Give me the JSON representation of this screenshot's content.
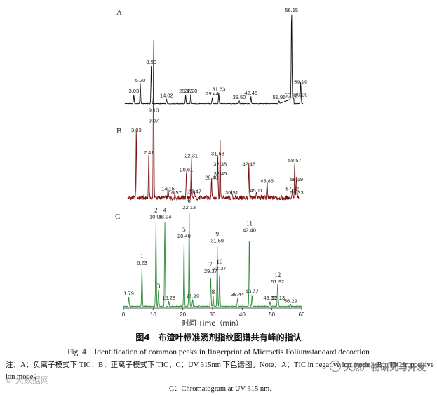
{
  "caption": {
    "cn": "图4　布渣叶标准汤剂指纹图谱共有峰的指认",
    "en": "Fig. 4　Identification of common peaks in fingerprint of Microctis Foliumstandard decoction",
    "note_line1": "注：A：负离子模式下 TIC；B：正离子模式下 TIC；C：UV 315nm 下色谱图。Note：A：TIC in negative ion mode；B：TIC in positive ion mode；",
    "note_line2": "C：Chromatogram at UV 315 nm."
  },
  "watermarks": {
    "left": "© 大数据网",
    "right": "天然产物研究与开发"
  },
  "chart_data": [
    {
      "panel_label": "A",
      "type": "line",
      "color": "#111111",
      "xlim": [
        0,
        60
      ],
      "peaks": [
        {
          "x": 3.03,
          "label": "3.03",
          "rel": 0.1
        },
        {
          "x": 5.2,
          "label": "5.20",
          "rel": 0.22
        },
        {
          "x": 8.9,
          "label": "8.90",
          "rel": 0.42
        },
        {
          "x": 14.02,
          "label": "14.02",
          "rel": 0.05
        },
        {
          "x": 20.47,
          "label": "20.47",
          "rel": 0.1
        },
        {
          "x": 22.2,
          "label": "22.20",
          "rel": 0.1
        },
        {
          "x": 29.44,
          "label": "29.44",
          "rel": 0.07
        },
        {
          "x": 31.63,
          "label": "31.63",
          "rel": 0.12
        },
        {
          "x": 38.5,
          "label": "38.50",
          "rel": 0.03
        },
        {
          "x": 42.45,
          "label": "42.45",
          "rel": 0.08
        },
        {
          "x": 51.96,
          "label": "51.96",
          "rel": 0.03
        },
        {
          "x": 55.98,
          "label": "55.98",
          "rel": 0.05
        },
        {
          "x": 56.15,
          "label": "56.15",
          "rel": 1.0
        },
        {
          "x": 59.19,
          "label": "59.19",
          "rel": 0.2
        },
        {
          "x": 59.29,
          "label": "59.29",
          "rel": 0.06
        }
      ]
    },
    {
      "panel_label": "B",
      "type": "line",
      "color": "#7a1010",
      "xlim": [
        0,
        60
      ],
      "peaks": [
        {
          "x": 3.03,
          "label": "3.03",
          "rel": 0.72
        },
        {
          "x": 7.41,
          "label": "7.41",
          "rel": 0.48
        },
        {
          "x": 9.07,
          "label": "9.07",
          "rel": 0.82
        },
        {
          "x": 9.1,
          "label": "9.10",
          "rel": 0.93
        },
        {
          "x": 14.15,
          "label": "14.15",
          "rel": 0.1
        },
        {
          "x": 16.57,
          "label": "16.57",
          "rel": 0.06
        },
        {
          "x": 20.61,
          "label": "20.61",
          "rel": 0.3
        },
        {
          "x": 22.31,
          "label": "22.31",
          "rel": 0.45
        },
        {
          "x": 23.47,
          "label": "23.47",
          "rel": 0.07
        },
        {
          "x": 29.4,
          "label": "29.40",
          "rel": 0.22
        },
        {
          "x": 31.58,
          "label": "31.58",
          "rel": 0.47
        },
        {
          "x": 32.38,
          "label": "32.38",
          "rel": 0.36
        },
        {
          "x": 32.45,
          "label": "32.45",
          "rel": 0.26
        },
        {
          "x": 36.51,
          "label": "36.51",
          "rel": 0.06
        },
        {
          "x": 42.48,
          "label": "42.48",
          "rel": 0.36
        },
        {
          "x": 45.11,
          "label": "45.11",
          "rel": 0.08
        },
        {
          "x": 48.86,
          "label": "48.86",
          "rel": 0.18
        },
        {
          "x": 57.72,
          "label": "57.72",
          "rel": 0.1
        },
        {
          "x": 58.57,
          "label": "58.57",
          "rel": 0.4
        },
        {
          "x": 59.19,
          "label": "59.19",
          "rel": 0.2
        },
        {
          "x": 59.33,
          "label": "59.33",
          "rel": 0.06
        }
      ]
    },
    {
      "panel_label": "C",
      "type": "line",
      "color": "#2e8b3a",
      "xlim": [
        0,
        60
      ],
      "xticks": [
        0,
        10,
        20,
        30,
        40,
        50,
        60
      ],
      "xlabel": "时间 Time（min）",
      "peaks": [
        {
          "x": 1.79,
          "label": "1.79",
          "rel": 0.1
        },
        {
          "x": 6.23,
          "label": "6.23",
          "rel": 0.42,
          "num": "1"
        },
        {
          "x": 10.95,
          "label": "10.95",
          "rel": 0.9,
          "num": "2"
        },
        {
          "x": 11.8,
          "label": "",
          "rel": 0.17,
          "num": "3"
        },
        {
          "x": 13.94,
          "label": "13.94",
          "rel": 0.9,
          "num": "4"
        },
        {
          "x": 15.28,
          "label": "15.28",
          "rel": 0.05
        },
        {
          "x": 20.4,
          "label": "20.40",
          "rel": 0.7,
          "num": "5"
        },
        {
          "x": 22.13,
          "label": "22.13",
          "rel": 1.0,
          "num": "6"
        },
        {
          "x": 23.29,
          "label": "23.29",
          "rel": 0.07
        },
        {
          "x": 29.37,
          "label": "29.37",
          "rel": 0.33,
          "num": "7"
        },
        {
          "x": 30.2,
          "label": "",
          "rel": 0.11,
          "num": "8"
        },
        {
          "x": 31.59,
          "label": "31.59",
          "rel": 0.65,
          "num": "9"
        },
        {
          "x": 32.37,
          "label": "32.37",
          "rel": 0.36,
          "num": "10"
        },
        {
          "x": 38.44,
          "label": "38.44",
          "rel": 0.09
        },
        {
          "x": 42.4,
          "label": "42.40",
          "rel": 0.76,
          "num": "11"
        },
        {
          "x": 43.32,
          "label": "43.32",
          "rel": 0.12
        },
        {
          "x": 49.35,
          "label": "49.35",
          "rel": 0.05
        },
        {
          "x": 51.92,
          "label": "51.92",
          "rel": 0.22,
          "num": "12"
        },
        {
          "x": 52.13,
          "label": "52.13",
          "rel": 0.05
        },
        {
          "x": 56.29,
          "label": "56.29",
          "rel": 0.02
        }
      ]
    }
  ]
}
